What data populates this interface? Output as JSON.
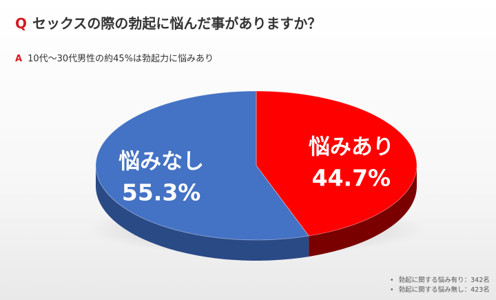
{
  "question": {
    "marker": "Q",
    "text": "セックスの際の勃起に悩んだ事がありますか？"
  },
  "answer": {
    "marker": "A",
    "text": "10代〜30代男性の約45%は勃起力に悩みあり"
  },
  "chart_data": {
    "type": "pie",
    "style": "3d",
    "slices": [
      {
        "label": "悩みあり",
        "value": 44.7,
        "percent_label": "44.7%",
        "color": "#ff0000",
        "side_color": "#7a0000"
      },
      {
        "label": "悩みなし",
        "value": 55.3,
        "percent_label": "55.3%",
        "color": "#4472c4",
        "side_color": "#2a4a86"
      }
    ]
  },
  "footnotes": [
    "勃起に関する悩み有り：342名",
    "勃起に関する悩み無し：423名"
  ]
}
